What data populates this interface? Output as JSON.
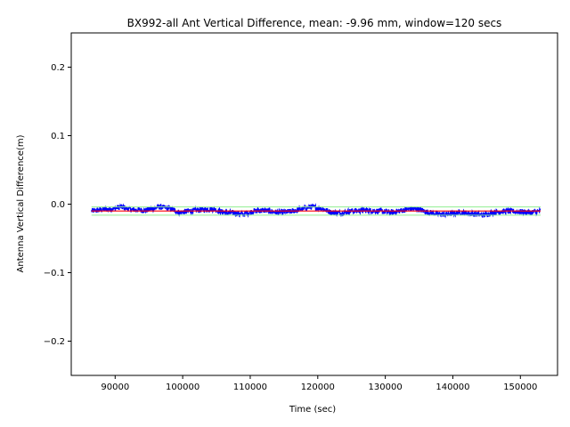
{
  "chart_data": {
    "type": "line",
    "title": "BX992-all Ant Vertical Difference, mean: -9.96 mm, window=120 secs",
    "xlabel": "Time (sec)",
    "ylabel": "Antenna Vertical Difference(m)",
    "xlim": [
      83500,
      155500
    ],
    "ylim": [
      -0.25,
      0.25
    ],
    "x_ticks": [
      {
        "value": 90000,
        "label": "90000"
      },
      {
        "value": 100000,
        "label": "100000"
      },
      {
        "value": 110000,
        "label": "110000"
      },
      {
        "value": 120000,
        "label": "120000"
      },
      {
        "value": 130000,
        "label": "130000"
      },
      {
        "value": 140000,
        "label": "140000"
      },
      {
        "value": 150000,
        "label": "150000"
      }
    ],
    "y_ticks": [
      {
        "value": -0.2,
        "label": "−0.2"
      },
      {
        "value": -0.1,
        "label": "−0.1"
      },
      {
        "value": 0.0,
        "label": "0.0"
      },
      {
        "value": 0.1,
        "label": "0.1"
      },
      {
        "value": 0.2,
        "label": "0.2"
      }
    ],
    "grid": false,
    "colors": {
      "raw": "#0000ff",
      "mean": "#ff0000",
      "upper_band": "#90ee90",
      "lower_band": "#90ee90"
    },
    "series": [
      {
        "key": "raw",
        "x": [
          86500,
          88000,
          89500,
          90800,
          92500,
          94500,
          96500,
          98000,
          99500,
          101000,
          103000,
          104500,
          106000,
          107500,
          109000,
          110500,
          112000,
          114000,
          116000,
          117500,
          119000,
          120500,
          122000,
          123500,
          125000,
          127000,
          129000,
          131000,
          133000,
          134500,
          136000,
          137500,
          139000,
          141000,
          143000,
          144500,
          146000,
          148000,
          150000,
          151500,
          153000
        ],
        "values": [
          -0.01,
          -0.008,
          -0.007,
          -0.004,
          -0.008,
          -0.009,
          -0.004,
          -0.006,
          -0.012,
          -0.01,
          -0.008,
          -0.007,
          -0.012,
          -0.013,
          -0.015,
          -0.01,
          -0.009,
          -0.012,
          -0.011,
          -0.007,
          -0.004,
          -0.006,
          -0.012,
          -0.013,
          -0.01,
          -0.009,
          -0.01,
          -0.012,
          -0.008,
          -0.006,
          -0.011,
          -0.014,
          -0.015,
          -0.012,
          -0.014,
          -0.016,
          -0.012,
          -0.01,
          -0.011,
          -0.012,
          -0.01
        ],
        "noise_amplitude": 0.004
      },
      {
        "key": "mean",
        "x": [
          86500,
          153000
        ],
        "values": [
          -0.00996,
          -0.00996
        ]
      },
      {
        "key": "upper_band",
        "x": [
          86500,
          153000
        ],
        "values": [
          -0.004,
          -0.004
        ]
      },
      {
        "key": "lower_band",
        "x": [
          86500,
          153000
        ],
        "values": [
          -0.016,
          -0.016
        ]
      }
    ]
  }
}
